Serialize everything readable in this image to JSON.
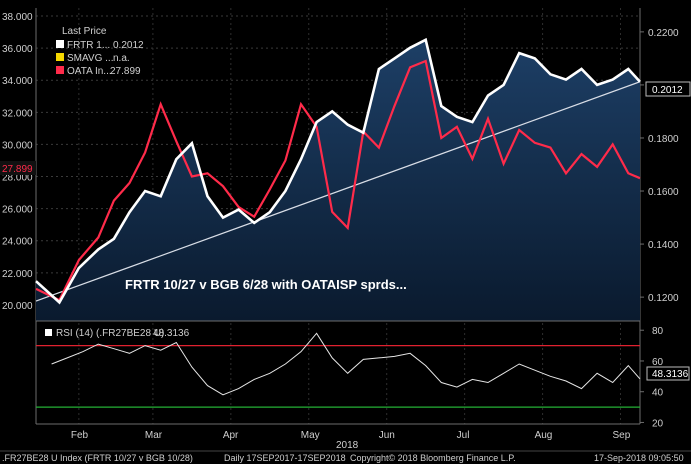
{
  "legend": {
    "title": "Last Price",
    "frtr_label": "FRTR 1...",
    "frtr_value": "0.2012",
    "smavg_label": "SMAVG ...",
    "smavg_value": "n.a.",
    "oata_label": "OATA In...",
    "oata_value": "27.899"
  },
  "annotation": "FRTR 10/27 v BGB 6/28 with OATAISP sprds...",
  "rsi": {
    "label": "RSI (14) (.FR27BE28 U)",
    "value": "48.3136"
  },
  "footer": {
    "security": ".FR27BE28 U Index (FRTR 10/27 v BGB 10/28)",
    "period": "Daily 17SEP2017-17SEP2018",
    "copyright": "Copyright© 2018 Bloomberg Finance L.P.",
    "timestamp": "17-Sep-2018 09:05:50"
  },
  "colors": {
    "frtr": "#ffffff",
    "smavg": "#f5d800",
    "oata": "#ff2b4a",
    "rsi_upper": "#e0212f",
    "rsi_lower": "#24b035",
    "area": "#1d3f66"
  },
  "chart_data": [
    {
      "type": "line",
      "x_unit": "months since 2018-01-15",
      "xticks": [
        {
          "label": "Feb",
          "x": 0.55
        },
        {
          "label": "Mar",
          "x": 1.5
        },
        {
          "label": "Apr",
          "x": 2.5
        },
        {
          "label": "May",
          "x": 3.5
        },
        {
          "label": "Jun",
          "x": 4.5
        },
        {
          "label": "Jul",
          "x": 5.5
        },
        {
          "label": "Aug",
          "x": 6.5
        },
        {
          "label": "Sep",
          "x": 7.5
        }
      ],
      "xlim": [
        0,
        7.75
      ],
      "year_label": "2018",
      "left_axis": {
        "ticks": [
          "20.000",
          "22.000",
          "24.000",
          "26.000",
          "28.000",
          "30.000",
          "32.000",
          "34.000",
          "36.000",
          "38.000"
        ],
        "ylim": [
          19.0,
          38.5
        ]
      },
      "right_axis": {
        "ticks": [
          "0.1200",
          "0.1400",
          "0.1600",
          "0.1800",
          "0.2000",
          "0.2200"
        ],
        "ylim": [
          0.111,
          0.229
        ]
      },
      "series": [
        {
          "name": "FRTR 1...",
          "axis": "right",
          "x": [
            0,
            0.3,
            0.55,
            0.8,
            1.0,
            1.2,
            1.4,
            1.6,
            1.8,
            2.0,
            2.2,
            2.4,
            2.6,
            2.8,
            3.0,
            3.2,
            3.4,
            3.6,
            3.8,
            4.0,
            4.2,
            4.4,
            4.6,
            4.8,
            5.0,
            5.2,
            5.4,
            5.6,
            5.8,
            6.0,
            6.2,
            6.4,
            6.6,
            6.8,
            7.0,
            7.2,
            7.4,
            7.6,
            7.75
          ],
          "values": [
            0.126,
            0.118,
            0.131,
            0.138,
            0.142,
            0.152,
            0.16,
            0.158,
            0.172,
            0.178,
            0.158,
            0.15,
            0.153,
            0.148,
            0.152,
            0.16,
            0.172,
            0.186,
            0.19,
            0.185,
            0.182,
            0.206,
            0.21,
            0.214,
            0.217,
            0.192,
            0.188,
            0.186,
            0.196,
            0.2,
            0.212,
            0.21,
            0.204,
            0.202,
            0.206,
            0.2,
            0.202,
            0.206,
            0.2012
          ]
        },
        {
          "name": "OATA In...",
          "axis": "left",
          "x": [
            0,
            0.3,
            0.55,
            0.8,
            1.0,
            1.2,
            1.4,
            1.6,
            1.8,
            2.0,
            2.2,
            2.4,
            2.6,
            2.8,
            3.0,
            3.2,
            3.4,
            3.6,
            3.8,
            4.0,
            4.2,
            4.4,
            4.6,
            4.8,
            5.0,
            5.2,
            5.4,
            5.6,
            5.8,
            6.0,
            6.2,
            6.4,
            6.6,
            6.8,
            7.0,
            7.2,
            7.4,
            7.6,
            7.75
          ],
          "values": [
            21.0,
            20.3,
            22.8,
            24.2,
            26.5,
            27.6,
            29.5,
            32.5,
            30.2,
            28.0,
            28.2,
            27.4,
            26.1,
            25.5,
            27.2,
            29.0,
            32.5,
            31.1,
            25.8,
            24.8,
            30.8,
            29.8,
            32.4,
            34.8,
            35.2,
            30.4,
            31.1,
            29.1,
            31.6,
            28.8,
            30.9,
            30.1,
            29.8,
            28.2,
            29.4,
            28.6,
            30.0,
            28.2,
            27.899
          ]
        }
      ],
      "trend_line": {
        "axis": "right",
        "x": [
          0,
          7.75
        ],
        "values": [
          0.1185,
          0.2012
        ]
      }
    },
    {
      "type": "line",
      "title": "RSI (14) (.FR27BE28 U)",
      "ylim": [
        19,
        86
      ],
      "yticks": [
        20,
        40,
        60,
        80
      ],
      "bands": {
        "upper": 70,
        "lower": 30
      },
      "series": [
        {
          "name": "RSI (14) (.FR27BE28 U)",
          "x": [
            0.2,
            0.4,
            0.6,
            0.8,
            1.0,
            1.2,
            1.4,
            1.6,
            1.8,
            2.0,
            2.2,
            2.4,
            2.6,
            2.8,
            3.0,
            3.2,
            3.4,
            3.6,
            3.8,
            4.0,
            4.2,
            4.4,
            4.6,
            4.8,
            5.0,
            5.2,
            5.4,
            5.6,
            5.8,
            6.0,
            6.2,
            6.4,
            6.6,
            6.8,
            7.0,
            7.2,
            7.4,
            7.6,
            7.75
          ],
          "values": [
            58,
            62,
            66,
            71,
            68,
            65,
            70,
            67,
            72,
            56,
            44,
            38,
            42,
            48,
            52,
            58,
            66,
            78,
            62,
            52,
            61,
            62,
            63,
            65,
            57,
            46,
            43,
            48,
            46,
            52,
            58,
            54,
            50,
            47,
            42,
            52,
            46,
            57,
            48.3136
          ]
        }
      ]
    }
  ]
}
